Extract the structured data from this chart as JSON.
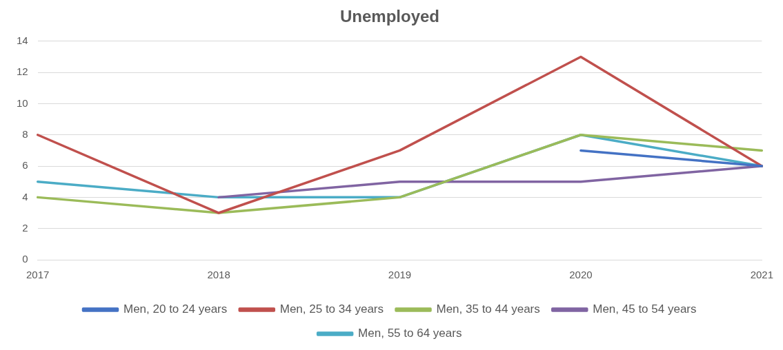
{
  "chart_data": {
    "type": "line",
    "title": "Unemployed",
    "categories": [
      "2017",
      "2018",
      "2019",
      "2020",
      "2021"
    ],
    "series": [
      {
        "name": "Men, 20 to 24 years",
        "color": "#4472c4",
        "values": [
          null,
          null,
          null,
          7,
          6
        ]
      },
      {
        "name": "Men, 25 to 34 years",
        "color": "#c0504d",
        "values": [
          8,
          3,
          7,
          13,
          6
        ]
      },
      {
        "name": "Men, 35 to 44 years",
        "color": "#9bbb59",
        "values": [
          4,
          3,
          4,
          8,
          7
        ]
      },
      {
        "name": "Men, 45 to 54 years",
        "color": "#8064a2",
        "values": [
          null,
          4,
          5,
          5,
          6
        ]
      },
      {
        "name": "Men, 55 to 64 years",
        "color": "#4bacc6",
        "values": [
          5,
          4,
          4,
          8,
          6
        ]
      }
    ],
    "ylim": [
      0,
      14
    ],
    "yticks": [
      0,
      2,
      4,
      6,
      8,
      10,
      12,
      14
    ],
    "grid": "y",
    "legend": "bottom",
    "marker": "none",
    "line_style": "solid"
  }
}
